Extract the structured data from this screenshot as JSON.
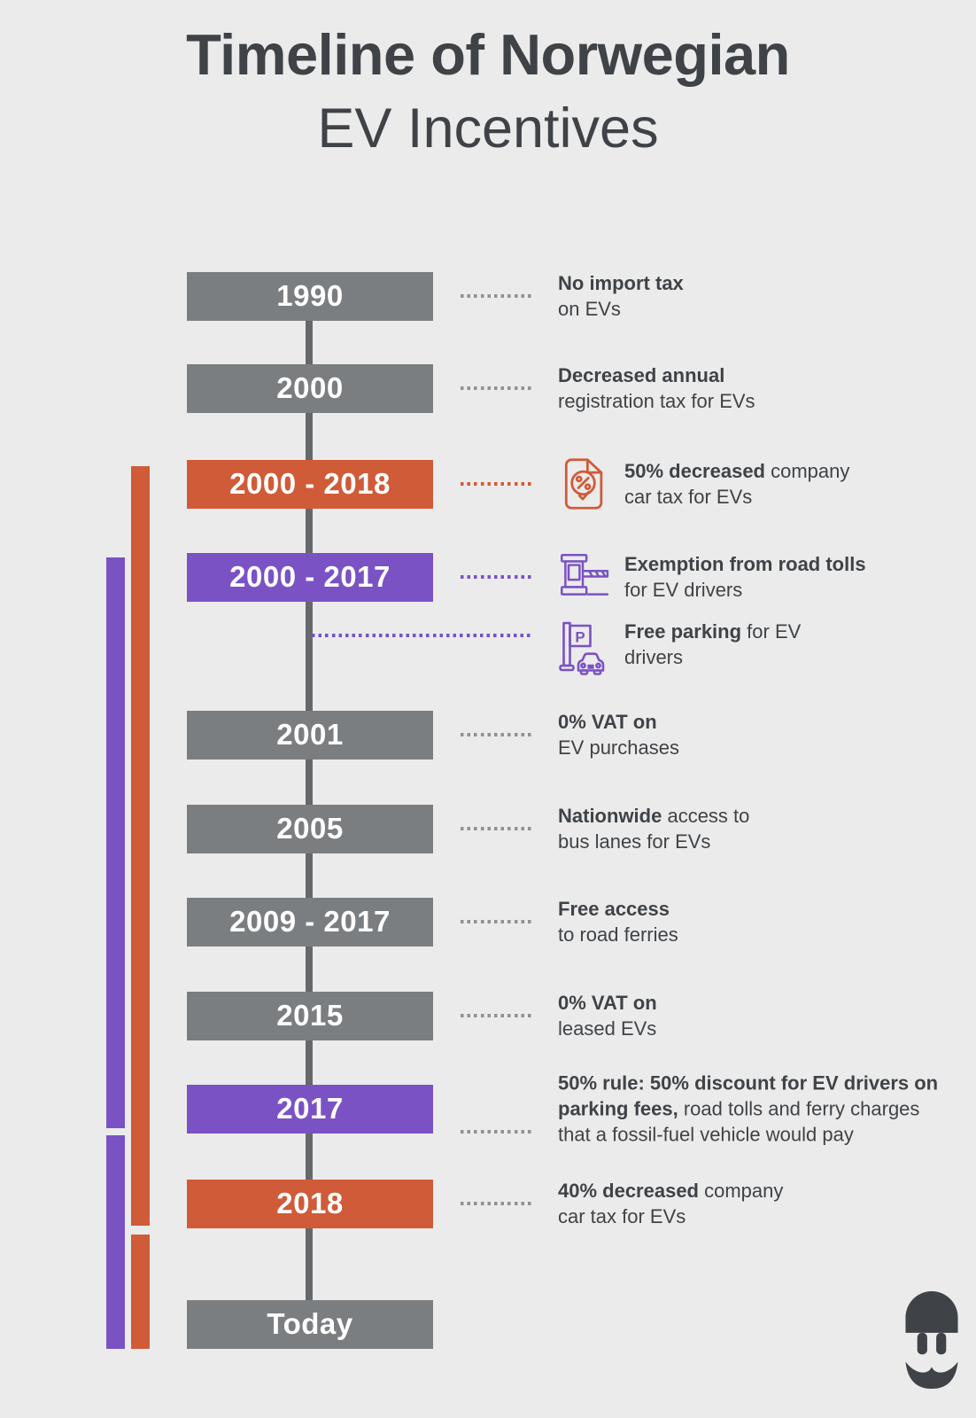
{
  "title": {
    "line1": "Timeline of Norwegian",
    "line2": "EV Incentives"
  },
  "colors": {
    "background": "#ebebeb",
    "box_gray": "#7b7e80",
    "orange": "#d05b38",
    "purple": "#7a52c4",
    "line": "#66696b",
    "dots_gray": "#8f9295",
    "text": "#3f4347",
    "box_text": "#ffffff",
    "logo": "#3f4347"
  },
  "rows": [
    {
      "label": "1990",
      "box": "gray",
      "connector": "gray",
      "icon": null,
      "desc": [
        {
          "t": "No import tax",
          "b": true
        },
        {
          "t": "\non EVs",
          "b": false
        }
      ]
    },
    {
      "label": "2000",
      "box": "gray",
      "connector": "gray",
      "icon": null,
      "desc": [
        {
          "t": "Decreased annual",
          "b": true
        },
        {
          "t": "\nregistration tax for EVs",
          "b": false
        }
      ]
    },
    {
      "label": "2000 - 2018",
      "box": "orange",
      "connector": "orange",
      "icon": "tax-document-icon",
      "desc": [
        {
          "t": "50% decreased",
          "b": true
        },
        {
          "t": " company\ncar tax for EVs",
          "b": false
        }
      ]
    },
    {
      "label": "2000 - 2017",
      "box": "purple",
      "connector": "purple",
      "icon": "toll-booth-icon",
      "desc": [
        {
          "t": "Exemption from road tolls",
          "b": true
        },
        {
          "t": "\nfor EV drivers",
          "b": false
        }
      ]
    },
    {
      "label": null,
      "box": null,
      "connector": "purple",
      "icon": "parking-icon",
      "desc": [
        {
          "t": "Free parking",
          "b": true
        },
        {
          "t": " for EV\ndrivers",
          "b": false
        }
      ]
    },
    {
      "label": "2001",
      "box": "gray",
      "connector": "gray",
      "icon": null,
      "desc": [
        {
          "t": "0% VAT on",
          "b": true
        },
        {
          "t": "\nEV purchases",
          "b": false
        }
      ]
    },
    {
      "label": "2005",
      "box": "gray",
      "connector": "gray",
      "icon": null,
      "desc": [
        {
          "t": "Nationwide",
          "b": true
        },
        {
          "t": " access to\nbus lanes for EVs",
          "b": false
        }
      ]
    },
    {
      "label": "2009 - 2017",
      "box": "gray",
      "connector": "gray",
      "icon": null,
      "desc": [
        {
          "t": "Free access",
          "b": true
        },
        {
          "t": "\nto road ferries",
          "b": false
        }
      ]
    },
    {
      "label": "2015",
      "box": "gray",
      "connector": "gray",
      "icon": null,
      "desc": [
        {
          "t": "0% VAT on",
          "b": true
        },
        {
          "t": "\nleased EVs",
          "b": false
        }
      ]
    },
    {
      "label": "2017",
      "box": "purple",
      "connector": "gray",
      "icon": null,
      "desc": [
        {
          "t": "50% rule: 50% discount for EV drivers on\nparking fees,",
          "b": true
        },
        {
          "t": " road tolls and ferry charges\nthat a fossil-fuel vehicle would pay",
          "b": false
        }
      ]
    },
    {
      "label": "2018",
      "box": "orange",
      "connector": "gray",
      "icon": null,
      "desc": [
        {
          "t": "40% decreased",
          "b": true
        },
        {
          "t": " company\ncar tax for EVs",
          "b": false
        }
      ]
    },
    {
      "label": "Today",
      "box": "gray",
      "connector": null,
      "icon": null,
      "desc": []
    }
  ]
}
